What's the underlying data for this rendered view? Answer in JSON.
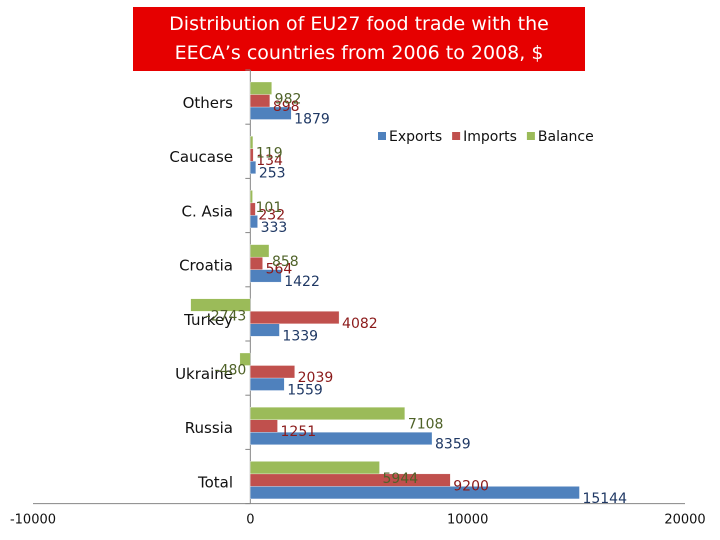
{
  "chart_data": {
    "type": "bar",
    "orientation": "horizontal",
    "title": "Distribution of EU27 food trade with the EECA’s countries from 2006 to 2008, $",
    "title_lines": [
      "Distribution of EU27 food trade with the",
      "EECA’s countries from 2006 to 2008, $"
    ],
    "categories": [
      "Others",
      "Caucase",
      "C. Asia",
      "Croatia",
      "Turkey",
      "Ukraine",
      "Russia",
      "Total"
    ],
    "series": [
      {
        "name": "Exports",
        "color": "#4f81bd",
        "values": [
          1879,
          253,
          333,
          1422,
          1339,
          1559,
          8359,
          15144
        ],
        "labels": [
          "1879",
          "253",
          "333",
          "1422",
          "1339",
          "1559",
          "8359",
          "15144"
        ]
      },
      {
        "name": "Imports",
        "color": "#c0504d",
        "values": [
          898,
          134,
          232,
          564,
          4082,
          2039,
          1251,
          9200
        ],
        "labels": [
          "898",
          "134",
          "232",
          "564",
          "4082",
          "2039",
          "1251",
          "9200"
        ]
      },
      {
        "name": "Balance",
        "color": "#9bbb59",
        "values": [
          982,
          119,
          101,
          858,
          -2743,
          -480,
          7108,
          5944
        ],
        "labels": [
          "982",
          "119",
          "101",
          "858",
          "-2743",
          "-480",
          "7108",
          "5944"
        ]
      }
    ],
    "xlim": [
      -10000,
      20000
    ],
    "x_ticks": [
      "-10000",
      "0",
      "10000",
      "20000"
    ],
    "legend_position": "top-right",
    "grid": false
  }
}
